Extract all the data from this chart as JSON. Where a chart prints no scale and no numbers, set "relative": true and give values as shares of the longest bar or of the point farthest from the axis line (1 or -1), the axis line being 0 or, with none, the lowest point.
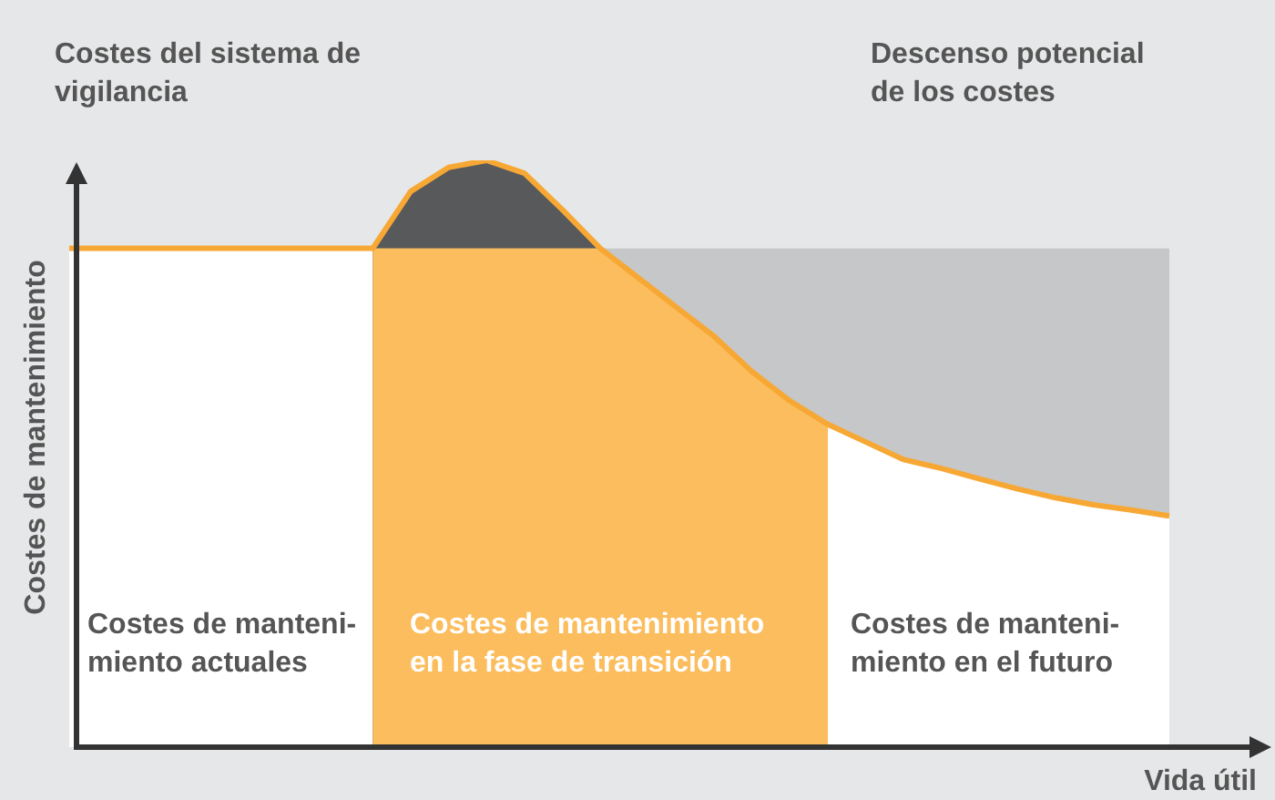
{
  "chart_data": {
    "type": "area",
    "relative": true,
    "xlabel": "Vida útil",
    "ylabel": "Costes de mantenimiento",
    "categories": [
      null,
      null,
      null,
      null,
      null,
      null,
      null,
      null,
      null,
      null,
      null,
      null,
      null,
      null,
      null,
      null,
      null,
      null,
      null,
      null,
      null,
      null,
      null,
      null,
      null,
      null,
      null,
      null,
      null,
      null
    ],
    "bands": [
      {
        "axis": "y",
        "from": 0,
        "to": 0.85,
        "color": "#ffffff"
      }
    ],
    "annotations": [
      "Costes de manteni-\nmiento actuales",
      "Costes de mantenimiento\nen la fase de transición",
      "Costes de manteni-\nmiento en el futuro",
      "Costes del sistema de\nvigilancia",
      "Descenso potencial\nde los costes"
    ],
    "series": [
      {
        "color": "#fbbd5e",
        "values": [
          null,
          null,
          null,
          null,
          null,
          null,
          null,
          null,
          0.85,
          0.85,
          0.85,
          0.85,
          0.85,
          0.85,
          0.85,
          0.8,
          0.75,
          0.7,
          0.64,
          0.59,
          0.55,
          null,
          null,
          null,
          null,
          null,
          null,
          null,
          null,
          null
        ]
      },
      {
        "color": "#58595b",
        "values": [
          null,
          null,
          null,
          null,
          null,
          null,
          null,
          null,
          0.85,
          0.947,
          0.988,
          1,
          0.978,
          0.916,
          0.85,
          null,
          null,
          null,
          null,
          null,
          null,
          null,
          null,
          null,
          null,
          null,
          null,
          null,
          null,
          null
        ]
      },
      {
        "color": "#c6c7c9",
        "values": [
          null,
          null,
          null,
          null,
          null,
          null,
          null,
          null,
          null,
          null,
          null,
          null,
          null,
          null,
          0.85,
          0.85,
          0.85,
          0.85,
          0.85,
          0.85,
          0.85,
          0.85,
          0.85,
          0.85,
          0.85,
          0.85,
          0.85,
          0.85,
          0.85,
          0.85
        ]
      },
      {
        "type": "line",
        "color": "#f7a834",
        "values": [
          0.85,
          0.85,
          0.85,
          0.85,
          0.85,
          0.85,
          0.85,
          0.85,
          0.85,
          0.947,
          0.988,
          1,
          0.978,
          0.916,
          0.85,
          0.8,
          0.75,
          0.7,
          0.64,
          0.59,
          0.55,
          0.52,
          0.49,
          0.475,
          0.457,
          0.44,
          0.425,
          0.413,
          0.404,
          0.394
        ]
      }
    ]
  }
}
